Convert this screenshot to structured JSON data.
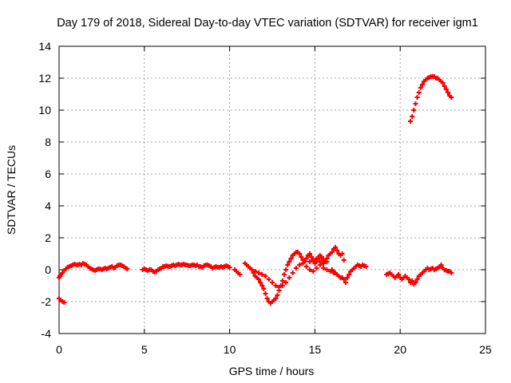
{
  "chart_data": {
    "type": "scatter",
    "title": "Day 179 of 2018, Sidereal Day-to-day VTEC variation (SDTVAR) for receiver igm1",
    "xlabel": "GPS time / hours",
    "ylabel": "SDTVAR / TECUs",
    "xlim": [
      0,
      25
    ],
    "ylim": [
      -4,
      14
    ],
    "xticks": [
      0,
      5,
      10,
      15,
      20,
      25
    ],
    "yticks": [
      -4,
      -2,
      0,
      2,
      4,
      6,
      8,
      10,
      12,
      14
    ],
    "grid": true,
    "marker": "plus",
    "color": "#ff0000",
    "series": [
      {
        "name": "SDTVAR",
        "x": [
          0.0,
          0.05,
          0.1,
          0.2,
          0.3,
          0.4,
          0.5,
          0.6,
          0.7,
          0.8,
          0.9,
          1.0,
          1.1,
          1.2,
          1.3,
          1.4,
          1.5,
          1.6,
          1.7,
          1.8,
          1.9,
          2.0,
          2.1,
          2.2,
          2.3,
          2.4,
          2.5,
          2.6,
          2.7,
          2.8,
          2.9,
          3.0,
          3.1,
          3.2,
          3.3,
          3.4,
          3.5,
          3.6,
          3.7,
          3.8,
          3.9,
          4.0,
          0.0,
          0.1,
          0.2,
          0.3,
          4.9,
          5.0,
          5.1,
          5.2,
          5.3,
          5.4,
          5.5,
          5.6,
          5.7,
          5.8,
          5.9,
          6.0,
          6.1,
          6.2,
          6.3,
          6.4,
          6.5,
          6.6,
          6.7,
          6.8,
          6.9,
          7.0,
          7.1,
          7.2,
          7.3,
          7.4,
          7.5,
          7.6,
          7.7,
          7.8,
          7.9,
          8.0,
          8.1,
          8.2,
          8.3,
          8.4,
          8.5,
          8.6,
          8.7,
          8.8,
          8.9,
          9.0,
          9.1,
          9.2,
          9.3,
          9.4,
          9.5,
          9.6,
          9.7,
          9.8,
          9.9,
          10.0,
          10.3,
          10.4,
          10.5,
          10.6,
          10.9,
          11.0,
          11.1,
          11.2,
          11.3,
          11.4,
          11.5,
          11.6,
          11.7,
          11.8,
          11.9,
          12.0,
          12.1,
          12.2,
          12.3,
          12.4,
          12.5,
          12.6,
          12.7,
          12.8,
          12.9,
          13.0,
          13.1,
          13.2,
          13.3,
          13.4,
          13.5,
          13.6,
          13.7,
          13.8,
          13.9,
          14.0,
          14.1,
          14.2,
          14.3,
          14.4,
          14.5,
          14.6,
          14.7,
          14.8,
          14.9,
          15.0,
          15.1,
          15.2,
          15.3,
          15.4,
          15.5,
          15.6,
          15.7,
          15.8,
          15.9,
          16.0,
          16.1,
          16.2,
          16.3,
          16.4,
          16.5,
          16.6,
          16.7,
          11.5,
          11.7,
          11.9,
          12.1,
          12.3,
          12.5,
          12.7,
          12.9,
          13.1,
          13.3,
          13.5,
          13.7,
          13.9,
          14.1,
          14.3,
          14.5,
          14.7,
          14.9,
          15.1,
          15.3,
          15.5,
          15.7,
          15.9,
          16.1,
          14.7,
          14.9,
          15.1,
          15.3,
          15.5,
          15.7,
          16.0,
          16.1,
          16.2,
          16.3,
          16.4,
          16.5,
          16.6,
          16.7,
          16.8,
          16.9,
          17.0,
          17.1,
          17.2,
          17.3,
          17.4,
          17.5,
          17.6,
          17.7,
          17.8,
          17.9,
          18.0,
          19.2,
          19.3,
          19.4,
          19.5,
          19.6,
          19.7,
          19.8,
          19.9,
          20.0,
          20.1,
          20.2,
          20.3,
          20.4,
          20.5,
          20.6,
          20.7,
          20.8,
          20.9,
          21.0,
          21.1,
          21.2,
          21.3,
          21.4,
          21.5,
          21.6,
          21.7,
          21.8,
          21.9,
          22.0,
          22.1,
          22.2,
          22.3,
          22.4,
          22.5,
          22.6,
          22.7,
          22.8,
          22.9,
          23.0,
          20.6,
          20.7,
          20.8,
          20.9,
          21.0,
          21.1,
          21.2,
          21.3,
          21.4,
          21.5,
          21.6,
          21.7,
          21.8,
          21.9,
          22.0,
          22.1,
          22.2,
          22.3,
          22.4,
          22.5,
          22.6,
          22.7,
          22.8,
          22.9,
          23.0
        ],
        "y": [
          -0.5,
          -0.4,
          -0.3,
          -0.2,
          -0.05,
          0.05,
          0.15,
          0.2,
          0.25,
          0.3,
          0.35,
          0.3,
          0.3,
          0.35,
          0.3,
          0.4,
          0.35,
          0.3,
          0.2,
          0.1,
          0.05,
          0.0,
          -0.05,
          0.0,
          0.05,
          0.05,
          0.0,
          0.05,
          0.1,
          0.05,
          0.1,
          0.15,
          0.2,
          0.1,
          0.15,
          0.25,
          0.3,
          0.3,
          0.25,
          0.2,
          0.1,
          0.05,
          -1.8,
          -1.9,
          -2.0,
          -2.05,
          0.0,
          0.05,
          0.0,
          -0.05,
          0.0,
          0.0,
          -0.1,
          -0.15,
          -0.1,
          0.0,
          0.05,
          0.1,
          0.2,
          0.2,
          0.25,
          0.2,
          0.2,
          0.25,
          0.3,
          0.25,
          0.3,
          0.35,
          0.3,
          0.3,
          0.35,
          0.3,
          0.3,
          0.25,
          0.25,
          0.3,
          0.3,
          0.25,
          0.3,
          0.2,
          0.2,
          0.15,
          0.25,
          0.3,
          0.3,
          0.25,
          0.2,
          0.1,
          0.15,
          0.2,
          0.15,
          0.15,
          0.2,
          0.15,
          0.2,
          0.25,
          0.2,
          0.15,
          0.0,
          -0.1,
          -0.2,
          -0.3,
          0.4,
          0.3,
          0.2,
          0.1,
          0.0,
          -0.2,
          -0.4,
          -0.5,
          -0.6,
          -0.8,
          -1.0,
          -1.2,
          -1.5,
          -1.8,
          -2.0,
          -2.1,
          -2.0,
          -1.9,
          -1.8,
          -1.6,
          -1.3,
          -1.0,
          -0.7,
          -0.3,
          0.0,
          0.3,
          0.5,
          0.7,
          0.9,
          1.0,
          1.1,
          1.1,
          1.0,
          0.8,
          0.6,
          0.5,
          0.7,
          0.9,
          1.0,
          0.8,
          0.6,
          0.4,
          0.5,
          0.7,
          0.9,
          0.8,
          0.6,
          0.5,
          0.7,
          0.9,
          1.0,
          1.1,
          1.3,
          1.4,
          1.2,
          1.0,
          0.9,
          1.0,
          0.6,
          -0.1,
          -0.2,
          -0.3,
          -0.4,
          -0.6,
          -0.8,
          -1.0,
          -1.1,
          -1.0,
          -0.8,
          -0.5,
          -0.2,
          0.1,
          0.3,
          0.4,
          0.2,
          0.0,
          -0.1,
          0.1,
          0.3,
          0.1,
          0.0,
          -0.1,
          -0.2,
          0.5,
          0.6,
          0.7,
          0.5,
          0.4,
          0.5,
          0.0,
          -0.1,
          -0.2,
          -0.3,
          -0.4,
          -0.5,
          -0.5,
          -0.6,
          -0.8,
          -0.5,
          -0.3,
          -0.1,
          0.0,
          0.1,
          0.2,
          0.3,
          0.25,
          0.2,
          0.3,
          0.25,
          0.2,
          -0.3,
          -0.25,
          -0.2,
          -0.3,
          -0.4,
          -0.5,
          -0.4,
          -0.3,
          -0.5,
          -0.6,
          -0.5,
          -0.4,
          -0.5,
          -0.6,
          -0.8,
          -0.7,
          -0.9,
          -0.8,
          -0.6,
          -0.4,
          -0.3,
          -0.2,
          -0.1,
          0.0,
          0.1,
          0.0,
          0.05,
          0.1,
          0.0,
          0.05,
          0.1,
          0.2,
          0.3,
          0.1,
          0.0,
          -0.05,
          -0.1,
          -0.1,
          -0.2,
          9.3,
          9.6,
          10.0,
          10.4,
          10.8,
          11.1,
          11.4,
          11.6,
          11.8,
          11.9,
          12.0,
          12.05,
          12.1,
          12.1,
          12.1,
          12.0,
          12.0,
          11.9,
          11.8,
          11.7,
          11.5,
          11.3,
          11.1,
          10.9,
          10.8
        ]
      }
    ]
  }
}
